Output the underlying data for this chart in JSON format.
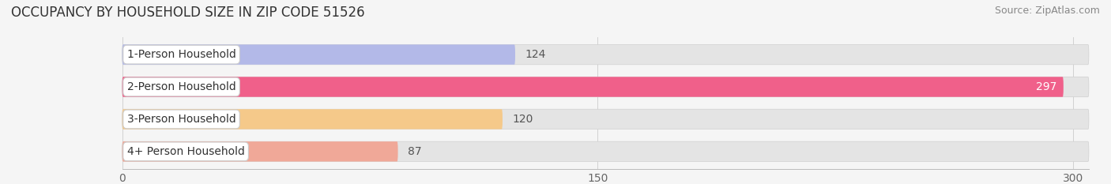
{
  "title": "OCCUPANCY BY HOUSEHOLD SIZE IN ZIP CODE 51526",
  "source": "Source: ZipAtlas.com",
  "categories": [
    "1-Person Household",
    "2-Person Household",
    "3-Person Household",
    "4+ Person Household"
  ],
  "values": [
    124,
    297,
    120,
    87
  ],
  "bar_colors": [
    "#b3b9e8",
    "#f0608a",
    "#f5c98a",
    "#f0a898"
  ],
  "background_color": "#f5f5f5",
  "bar_bg_color": "#e4e4e4",
  "xlim": [
    0,
    305
  ],
  "xticks": [
    0,
    150,
    300
  ],
  "title_fontsize": 12,
  "source_fontsize": 9,
  "label_fontsize": 10,
  "value_fontsize": 10,
  "tick_fontsize": 10,
  "bar_height": 0.62,
  "fig_width": 14.06,
  "fig_height": 2.33,
  "value_colors": [
    "#555555",
    "#ffffff",
    "#555555",
    "#555555"
  ],
  "value_inside": [
    false,
    true,
    false,
    false
  ]
}
